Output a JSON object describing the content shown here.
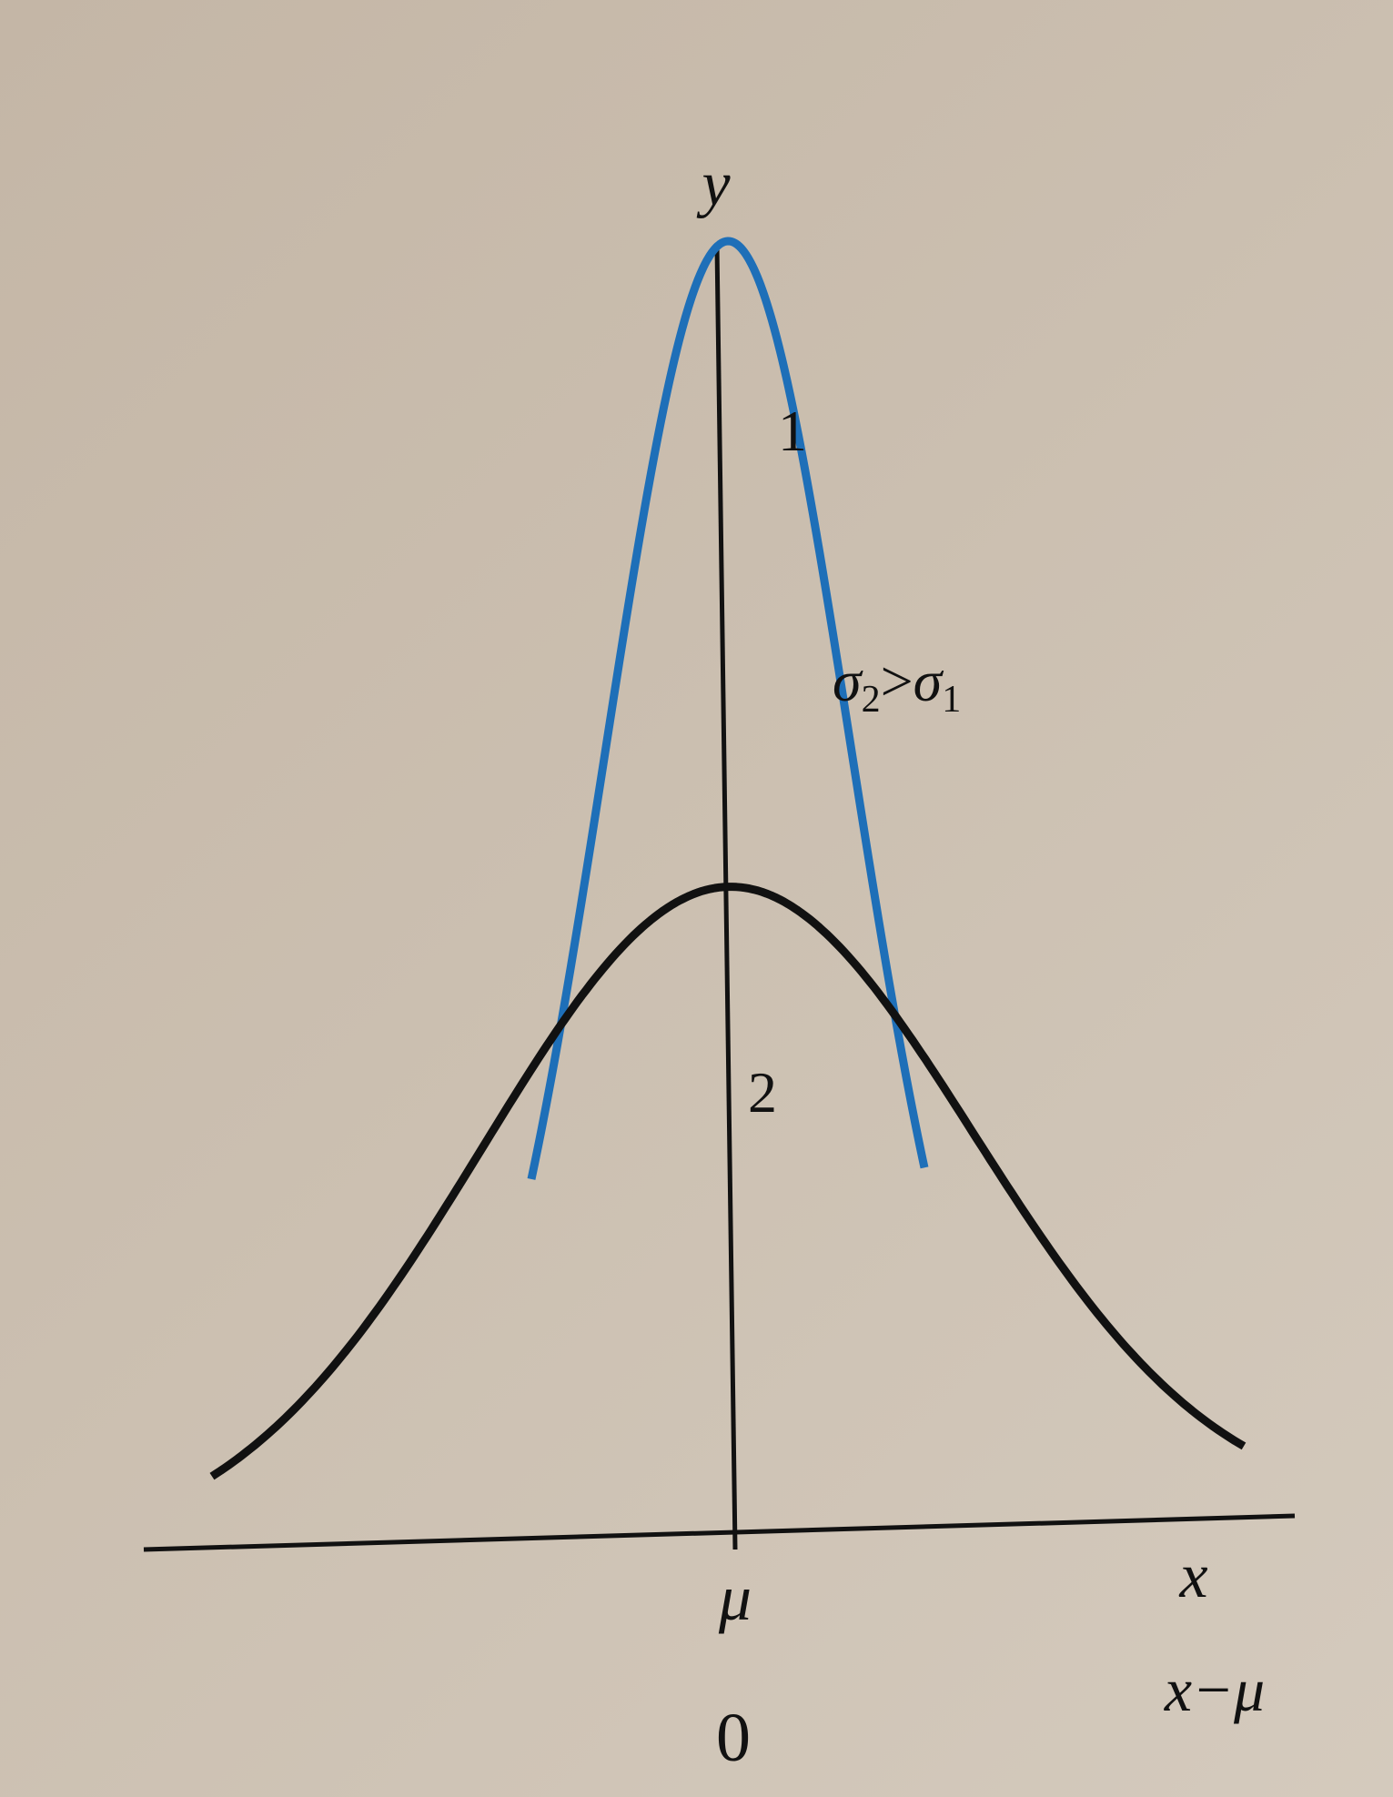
{
  "labels": {
    "y_axis": "y",
    "x_axis": "x",
    "mu": "μ",
    "shifted_axis": "x−μ",
    "zero": "0",
    "curve1": "1",
    "curve2": "2",
    "relation": {
      "sigma_left": "σ",
      "sub_left": "2",
      "gt": ">",
      "sigma_right": "σ",
      "sub_right": "1"
    }
  },
  "colors": {
    "background": "#c8bcad",
    "axis": "#111111",
    "curve1": "#1e6fb8",
    "curve2": "#111111"
  },
  "chart_data": {
    "type": "line",
    "series": [
      {
        "name": "1",
        "mu": 0,
        "sigma": 0.5
      },
      {
        "name": "2",
        "mu": 0,
        "sigma": 1.0
      }
    ]
  }
}
